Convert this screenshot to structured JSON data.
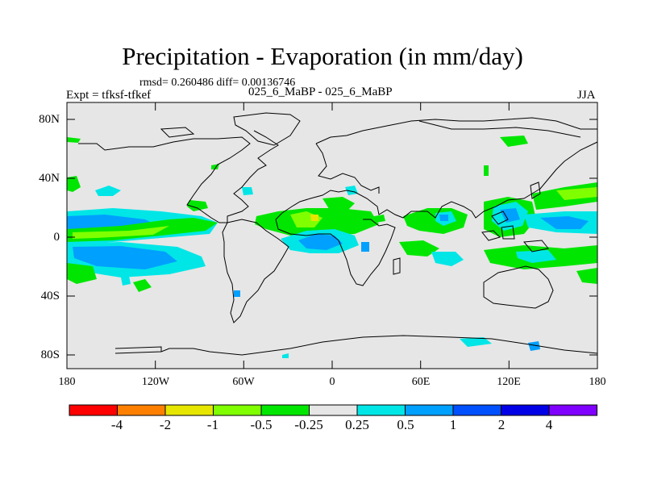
{
  "title": "Precipitation - Evaporation (in mm/day)",
  "stats": "rmsd= 0.260486 diff= 0.00136746",
  "expt": "Expt = tfksf-tfkef",
  "subtitle": "025_6_MaBP - 025_6_MaBP",
  "season": "JJA",
  "map": {
    "background_color": "#e6e6e6",
    "lat_labels": [
      "80N",
      "40N",
      "0",
      "40S",
      "80S"
    ],
    "lon_labels": [
      "180",
      "120W",
      "60W",
      "0",
      "60E",
      "120E",
      "180"
    ]
  },
  "colorbar": {
    "colors": [
      "#ff0000",
      "#ff8000",
      "#e6e600",
      "#80ff00",
      "#00e600",
      "#e6e6e6",
      "#00e6e6",
      "#00a0ff",
      "#0050ff",
      "#0000e6",
      "#8000ff"
    ],
    "labels": [
      "-4",
      "-2",
      "-1",
      "-0.5",
      "-0.25",
      "0.25",
      "0.5",
      "1",
      "2",
      "4"
    ]
  }
}
